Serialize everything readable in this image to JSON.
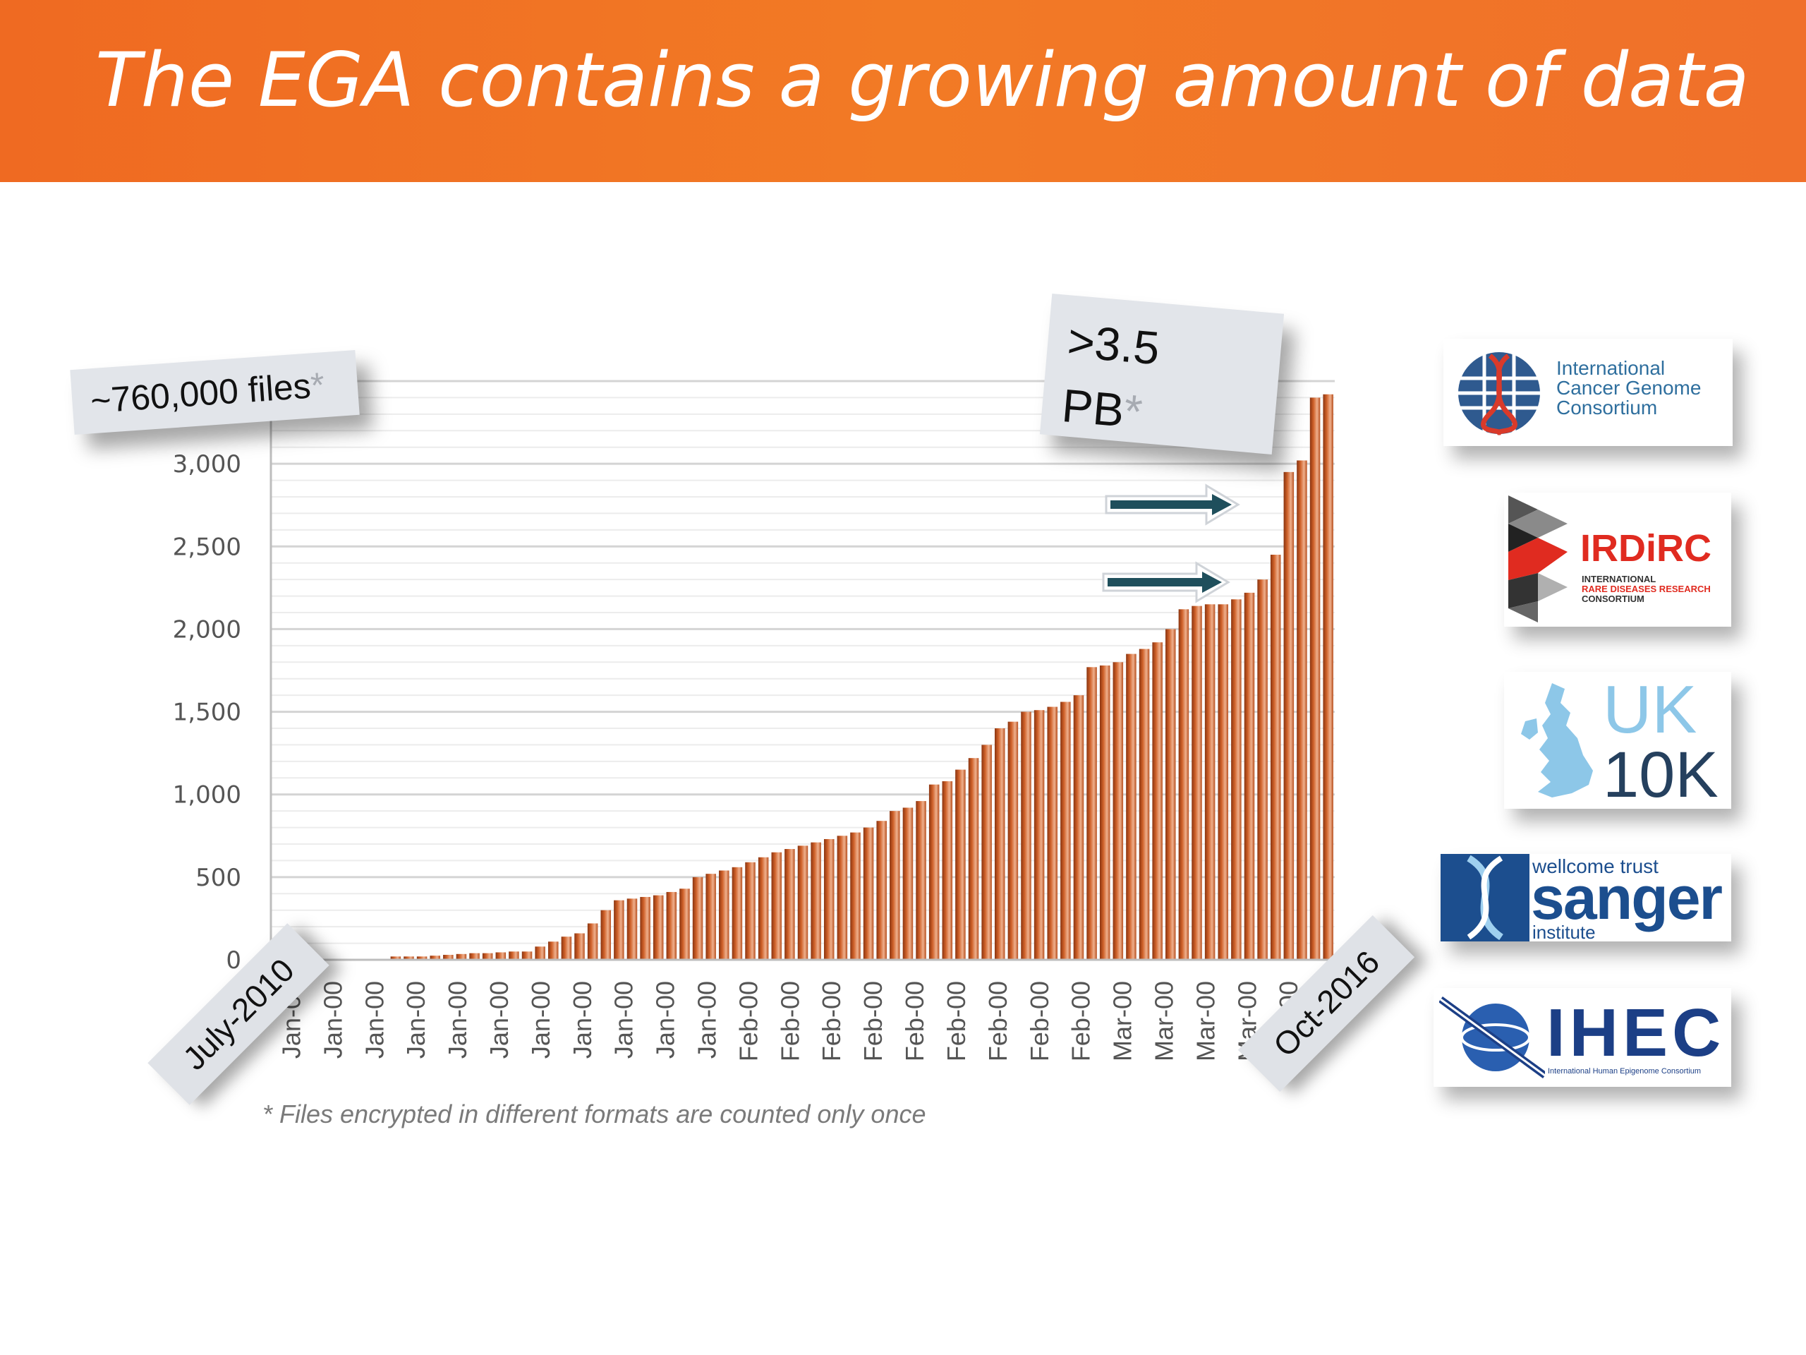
{
  "header": {
    "title": "The EGA contains a growing amount of data"
  },
  "callouts": {
    "files": "~760,000 files",
    "files_star": "*",
    "storage_line1": ">3.5",
    "storage_line2": "PB",
    "storage_star": "*"
  },
  "date_tags": {
    "start": "July-2010",
    "end": "Oct-2016"
  },
  "footnote": "* Files encrypted in different formats are counted only once",
  "logos": {
    "icgc": [
      "International",
      "Cancer Genome",
      "Consortium"
    ],
    "irdirc": {
      "name": "IRDiRC",
      "sub1": "INTERNATIONAL",
      "sub2": "RARE DISEASES RESEARCH",
      "sub3": "CONSORTIUM"
    },
    "uk10k": {
      "line1": "UK",
      "line2": "10K"
    },
    "sanger": {
      "top": "wellcome trust",
      "main": "sanger",
      "bottom": "institute"
    },
    "ihec": {
      "name": "IHEC",
      "sub": "International Human Epigenome Consortium"
    }
  },
  "colors": {
    "banner": "#f07424",
    "bar": "#c9561c",
    "arrow": "#1f4f5c"
  },
  "chart_data": {
    "type": "bar",
    "ylim": [
      0,
      3500
    ],
    "yticks": [
      0,
      500,
      1000,
      1500,
      2000,
      2500,
      3000
    ],
    "ytick_labels": [
      "0",
      "500",
      "1,000",
      "1,500",
      "2,000",
      "2,500",
      "3,000"
    ],
    "grid": true,
    "x_tick_labels": [
      "Jan-00",
      "Jan-00",
      "Jan-00",
      "Jan-00",
      "Jan-00",
      "Jan-00",
      "Jan-00",
      "Jan-00",
      "Jan-00",
      "Jan-00",
      "Jan-00",
      "Feb-00",
      "Feb-00",
      "Feb-00",
      "Feb-00",
      "Feb-00",
      "Feb-00",
      "Feb-00",
      "Feb-00",
      "Feb-00",
      "Mar-00",
      "Mar-00",
      "Mar-00",
      "Mar-00",
      "Mar-00"
    ],
    "values": [
      0,
      0,
      0,
      0,
      0,
      0,
      0,
      0,
      0,
      20,
      20,
      20,
      25,
      30,
      35,
      40,
      40,
      45,
      50,
      50,
      80,
      110,
      140,
      160,
      220,
      300,
      360,
      370,
      380,
      390,
      410,
      430,
      500,
      520,
      540,
      560,
      590,
      620,
      650,
      670,
      690,
      710,
      730,
      750,
      770,
      800,
      840,
      900,
      920,
      960,
      1060,
      1080,
      1150,
      1220,
      1300,
      1400,
      1440,
      1500,
      1510,
      1530,
      1560,
      1600,
      1770,
      1780,
      1800,
      1850,
      1880,
      1920,
      2000,
      2120,
      2140,
      2150,
      2150,
      2180,
      2220,
      2300,
      2450,
      2950,
      3020,
      3400,
      3420
    ]
  }
}
